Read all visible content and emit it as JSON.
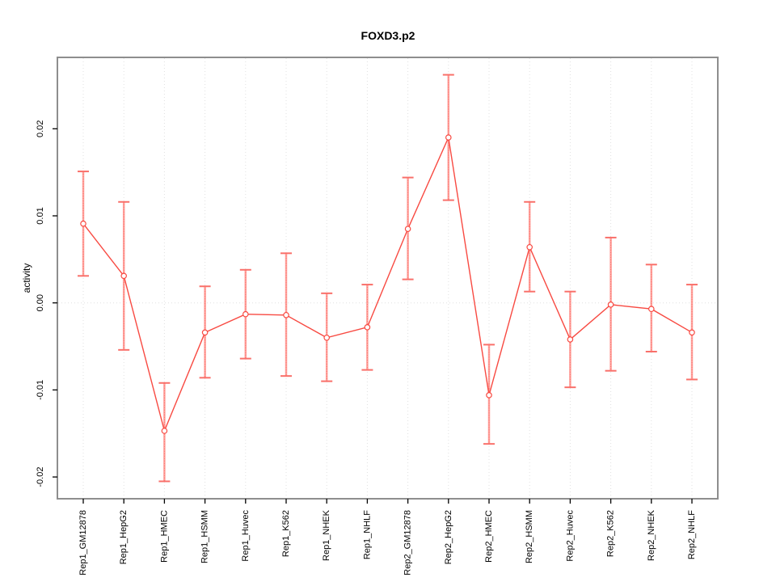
{
  "chart_data": {
    "type": "line",
    "title": "FOXD3.p2",
    "ylabel": "activity",
    "xlabel": "",
    "categories": [
      "Rep1_GM12878",
      "Rep1_HepG2",
      "Rep1_HMEC",
      "Rep1_HSMM",
      "Rep1_Huvec",
      "Rep1_K562",
      "Rep1_NHEK",
      "Rep1_NHLF",
      "Rep2_GM12878",
      "Rep2_HepG2",
      "Rep2_HMEC",
      "Rep2_HSMM",
      "Rep2_Huvec",
      "Rep2_K562",
      "Rep2_NHEK",
      "Rep2_NHLF"
    ],
    "series": [
      {
        "name": "activity",
        "values": [
          0.0091,
          0.0031,
          -0.0147,
          -0.0034,
          -0.0013,
          -0.0014,
          -0.004,
          -0.0028,
          0.0085,
          0.019,
          -0.0106,
          0.0064,
          -0.0042,
          -0.0002,
          -0.0007,
          -0.0034
        ],
        "error_upper": [
          0.0151,
          0.0116,
          -0.0092,
          0.0019,
          0.0038,
          0.0057,
          0.0011,
          0.0021,
          0.0144,
          0.0262,
          -0.0048,
          0.0116,
          0.0013,
          0.0075,
          0.0044,
          0.0021
        ],
        "error_lower": [
          0.0031,
          -0.0054,
          -0.0205,
          -0.0086,
          -0.0064,
          -0.0084,
          -0.009,
          -0.0077,
          0.0027,
          0.0118,
          -0.0162,
          0.0013,
          -0.0097,
          -0.0078,
          -0.0056,
          -0.0088
        ]
      }
    ],
    "ylim": [
      -0.0225,
      0.0282
    ],
    "ytick_values": [
      -0.02,
      -0.01,
      0,
      0.01,
      0.02
    ],
    "ytick_labels": [
      "-0.02",
      "-0.01",
      "0.00",
      "0.01",
      "0.02"
    ],
    "grid": {
      "vertical_per_category": true,
      "horizontal_zero_line": true,
      "style": "dotted"
    },
    "legend": "none",
    "marker": "open-circle",
    "error_bars": true,
    "colors": {
      "line": "#f84a42",
      "marker": "#f84a42",
      "error_stem": "#ffa09b",
      "error_cap": "#f9706a",
      "grid": "#e0e0e0",
      "border": "#8e8e8e",
      "text": "#000000",
      "background": "#ffffff"
    }
  }
}
